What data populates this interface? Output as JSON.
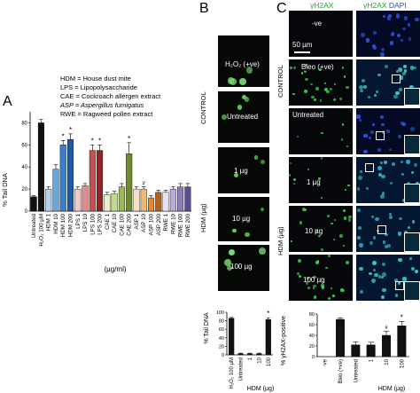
{
  "panels": {
    "A": "A",
    "B": "B",
    "C": "C"
  },
  "legend": [
    "HDM = House dust mite",
    "LPS  = Lipopolysaccharide",
    "CAE = Cockroach allergen extract",
    "ASP = Aspergillus fumigatus",
    "RWE = Ragweed pollen extract"
  ],
  "panelA": {
    "ylabel": "% Tail DNA",
    "xlabel": "(µg/ml)",
    "categories": [
      "Untreated",
      "H₂O₂ 100 µM",
      "HDM 1",
      "HDM 10",
      "HDM 100",
      "HDM 200",
      "LPS 1",
      "LPS 10",
      "LPS 100",
      "LPS 200",
      "CAE 1",
      "CAE 10",
      "CAE 100",
      "CAE 200",
      "ASP 1",
      "ASP 10",
      "ASP 100",
      "ASP 200",
      "RWE 1",
      "RWE 10",
      "RWE 100",
      "RWE 200"
    ],
    "marks": {
      "star": "*",
      "hash": "#"
    }
  },
  "panelB": {
    "side_label_control": "CONTROL",
    "side_label_hdm": "HDM (µg)",
    "images": [
      "H₂O₂ (+ve)",
      "Untreated",
      "1 µg",
      "10 µg",
      "100 µg"
    ],
    "ylabel": "% Tail DNA",
    "xlabel": "HDM (µg)",
    "ticks_x": [
      "H₂O₂ 100 µM",
      "Untreated",
      "1",
      "10",
      "100"
    ]
  },
  "panelC": {
    "col1": "γH2AX",
    "col2a": "γH2AX",
    "col2b": "DAPI",
    "scale": "50 µm",
    "side_label_control": "CONTROL",
    "side_label_hdm": "HDM (µg)",
    "rows": [
      "-ve",
      "Bleo (+ve)",
      "Untreated",
      "1 µg",
      "10 µg",
      "100 µg"
    ],
    "ylabel": "% γH2AX-positive",
    "xlabel": "HDM (µg)",
    "ticks_x": [
      "-ve",
      "Bleo (+ve)",
      "Untreated",
      "1",
      "10",
      "100"
    ]
  },
  "chart_data": [
    {
      "type": "bar",
      "categories": [
        "Untreated",
        "H₂O₂ 100 µM",
        "HDM 1",
        "HDM 10",
        "HDM 100",
        "HDM 200",
        "LPS 1",
        "LPS 10",
        "LPS 100",
        "LPS 200",
        "CAE 1",
        "CAE 10",
        "CAE 100",
        "CAE 200",
        "ASP 1",
        "ASP 10",
        "ASP 100",
        "ASP 200",
        "RWE 1",
        "RWE 10",
        "RWE 100",
        "RWE 200"
      ],
      "values": [
        13,
        80,
        20,
        38,
        60,
        65,
        20,
        23,
        55,
        55,
        15,
        16,
        22,
        52,
        20,
        20,
        12,
        17,
        17,
        20,
        22,
        22
      ],
      "errors": [
        1,
        3,
        2,
        4,
        4,
        5,
        2,
        2,
        5,
        5,
        2,
        2,
        3,
        10,
        2,
        2,
        2,
        2,
        2,
        2,
        3,
        3
      ],
      "colors": [
        "#111111",
        "#111111",
        "#b7d3ec",
        "#6aa8dc",
        "#3c7fc8",
        "#1f5aa6",
        "#f4c9c9",
        "#e08a8a",
        "#c65050",
        "#8f2424",
        "#e7f0c8",
        "#c2d88c",
        "#9bb656",
        "#6f8a2c",
        "#f7e0c2",
        "#f0b877",
        "#e08a35",
        "#b8601a",
        "#e6e0f0",
        "#b9acd6",
        "#8e7bbb",
        "#5e4c93"
      ],
      "ylabel": "% Tail DNA",
      "xlabel": "(µg/ml)",
      "ylim": [
        0,
        90
      ],
      "yticks": [
        0,
        20,
        40,
        60,
        80
      ]
    },
    {
      "type": "bar",
      "categories": [
        "H₂O₂ 100 µM",
        "Untreated",
        "1",
        "10",
        "100"
      ],
      "values": [
        86,
        3,
        3,
        3,
        83
      ],
      "errors": [
        2,
        1,
        1,
        1,
        4
      ],
      "ylabel": "% Tail DNA",
      "xlabel": "HDM (µg)",
      "ylim": [
        0,
        100
      ],
      "yticks": [
        0,
        20,
        40,
        60,
        80,
        100
      ]
    },
    {
      "type": "bar",
      "categories": [
        "-ve",
        "Bleo (+ve)",
        "Untreated",
        "1",
        "10",
        "100"
      ],
      "values": [
        0,
        70,
        22,
        22,
        40,
        58
      ],
      "errors": [
        0,
        3,
        6,
        5,
        8,
        8
      ],
      "ylabel": "% γH2AX-positive",
      "xlabel": "HDM (µg)",
      "ylim": [
        0,
        80
      ],
      "yticks": [
        0,
        20,
        40,
        60,
        80
      ]
    }
  ]
}
